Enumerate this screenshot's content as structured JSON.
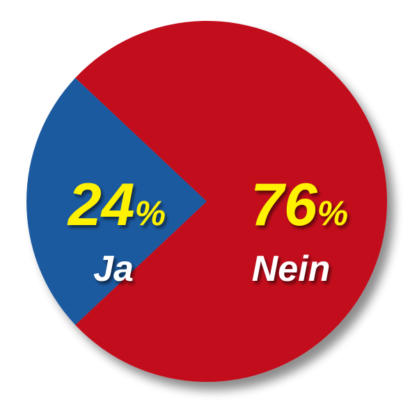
{
  "chart_data": {
    "type": "pie",
    "categories": [
      "Ja",
      "Nein"
    ],
    "values": [
      24,
      76
    ],
    "percent_labels": [
      "24",
      "76"
    ],
    "percent_sign": "%",
    "colors": [
      "#1b5aa0",
      "#c20a1d"
    ],
    "value_label_color": "#fff200",
    "category_label_color": "#ffffff"
  }
}
